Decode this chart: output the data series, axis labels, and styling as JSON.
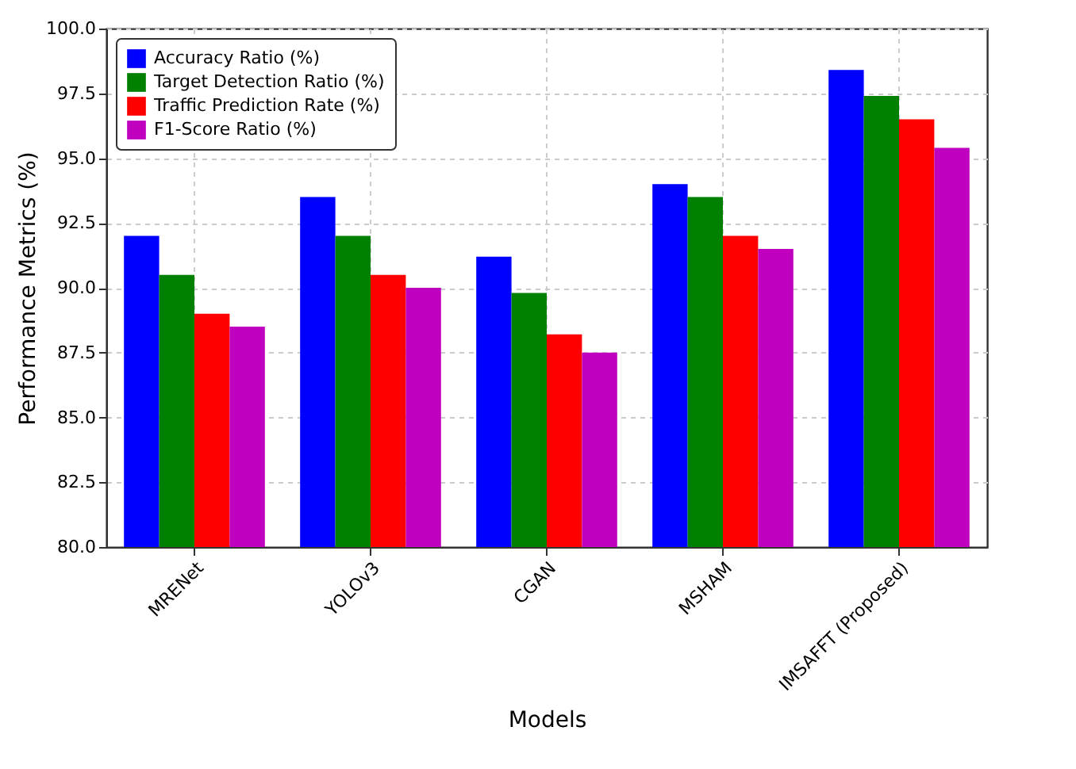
{
  "chart_data": {
    "type": "bar",
    "xlabel": "Models",
    "ylabel": "Performance Metrics (%)",
    "categories": [
      "MRENet",
      "YOLOv3",
      "CGAN",
      "MSHAM",
      "IMSAFFT (Proposed)"
    ],
    "series": [
      {
        "name": "Accuracy Ratio (%)",
        "color": "#0000ff",
        "values": [
          92.0,
          93.5,
          91.2,
          94.0,
          98.4
        ]
      },
      {
        "name": "Target Detection Ratio (%)",
        "color": "#008000",
        "values": [
          90.5,
          92.0,
          89.8,
          93.5,
          97.4
        ]
      },
      {
        "name": "Traffic Prediction Rate (%)",
        "color": "#ff0000",
        "values": [
          89.0,
          90.5,
          88.2,
          92.0,
          96.5
        ]
      },
      {
        "name": "F1-Score Ratio (%)",
        "color": "#bf00bf",
        "values": [
          88.5,
          90.0,
          87.5,
          91.5,
          95.4
        ]
      }
    ],
    "ylim": [
      80,
      100
    ],
    "yticks": [
      {
        "value": 80,
        "label": "80.0"
      },
      {
        "value": 82.5,
        "label": "82.5"
      },
      {
        "value": 85,
        "label": "85.0"
      },
      {
        "value": 87.5,
        "label": "87.5"
      },
      {
        "value": 90,
        "label": "90.0"
      },
      {
        "value": 92.5,
        "label": "92.5"
      },
      {
        "value": 95,
        "label": "95.0"
      },
      {
        "value": 97.5,
        "label": "97.5"
      },
      {
        "value": 100,
        "label": "100.0"
      }
    ],
    "grid": true,
    "legend": "top left"
  }
}
